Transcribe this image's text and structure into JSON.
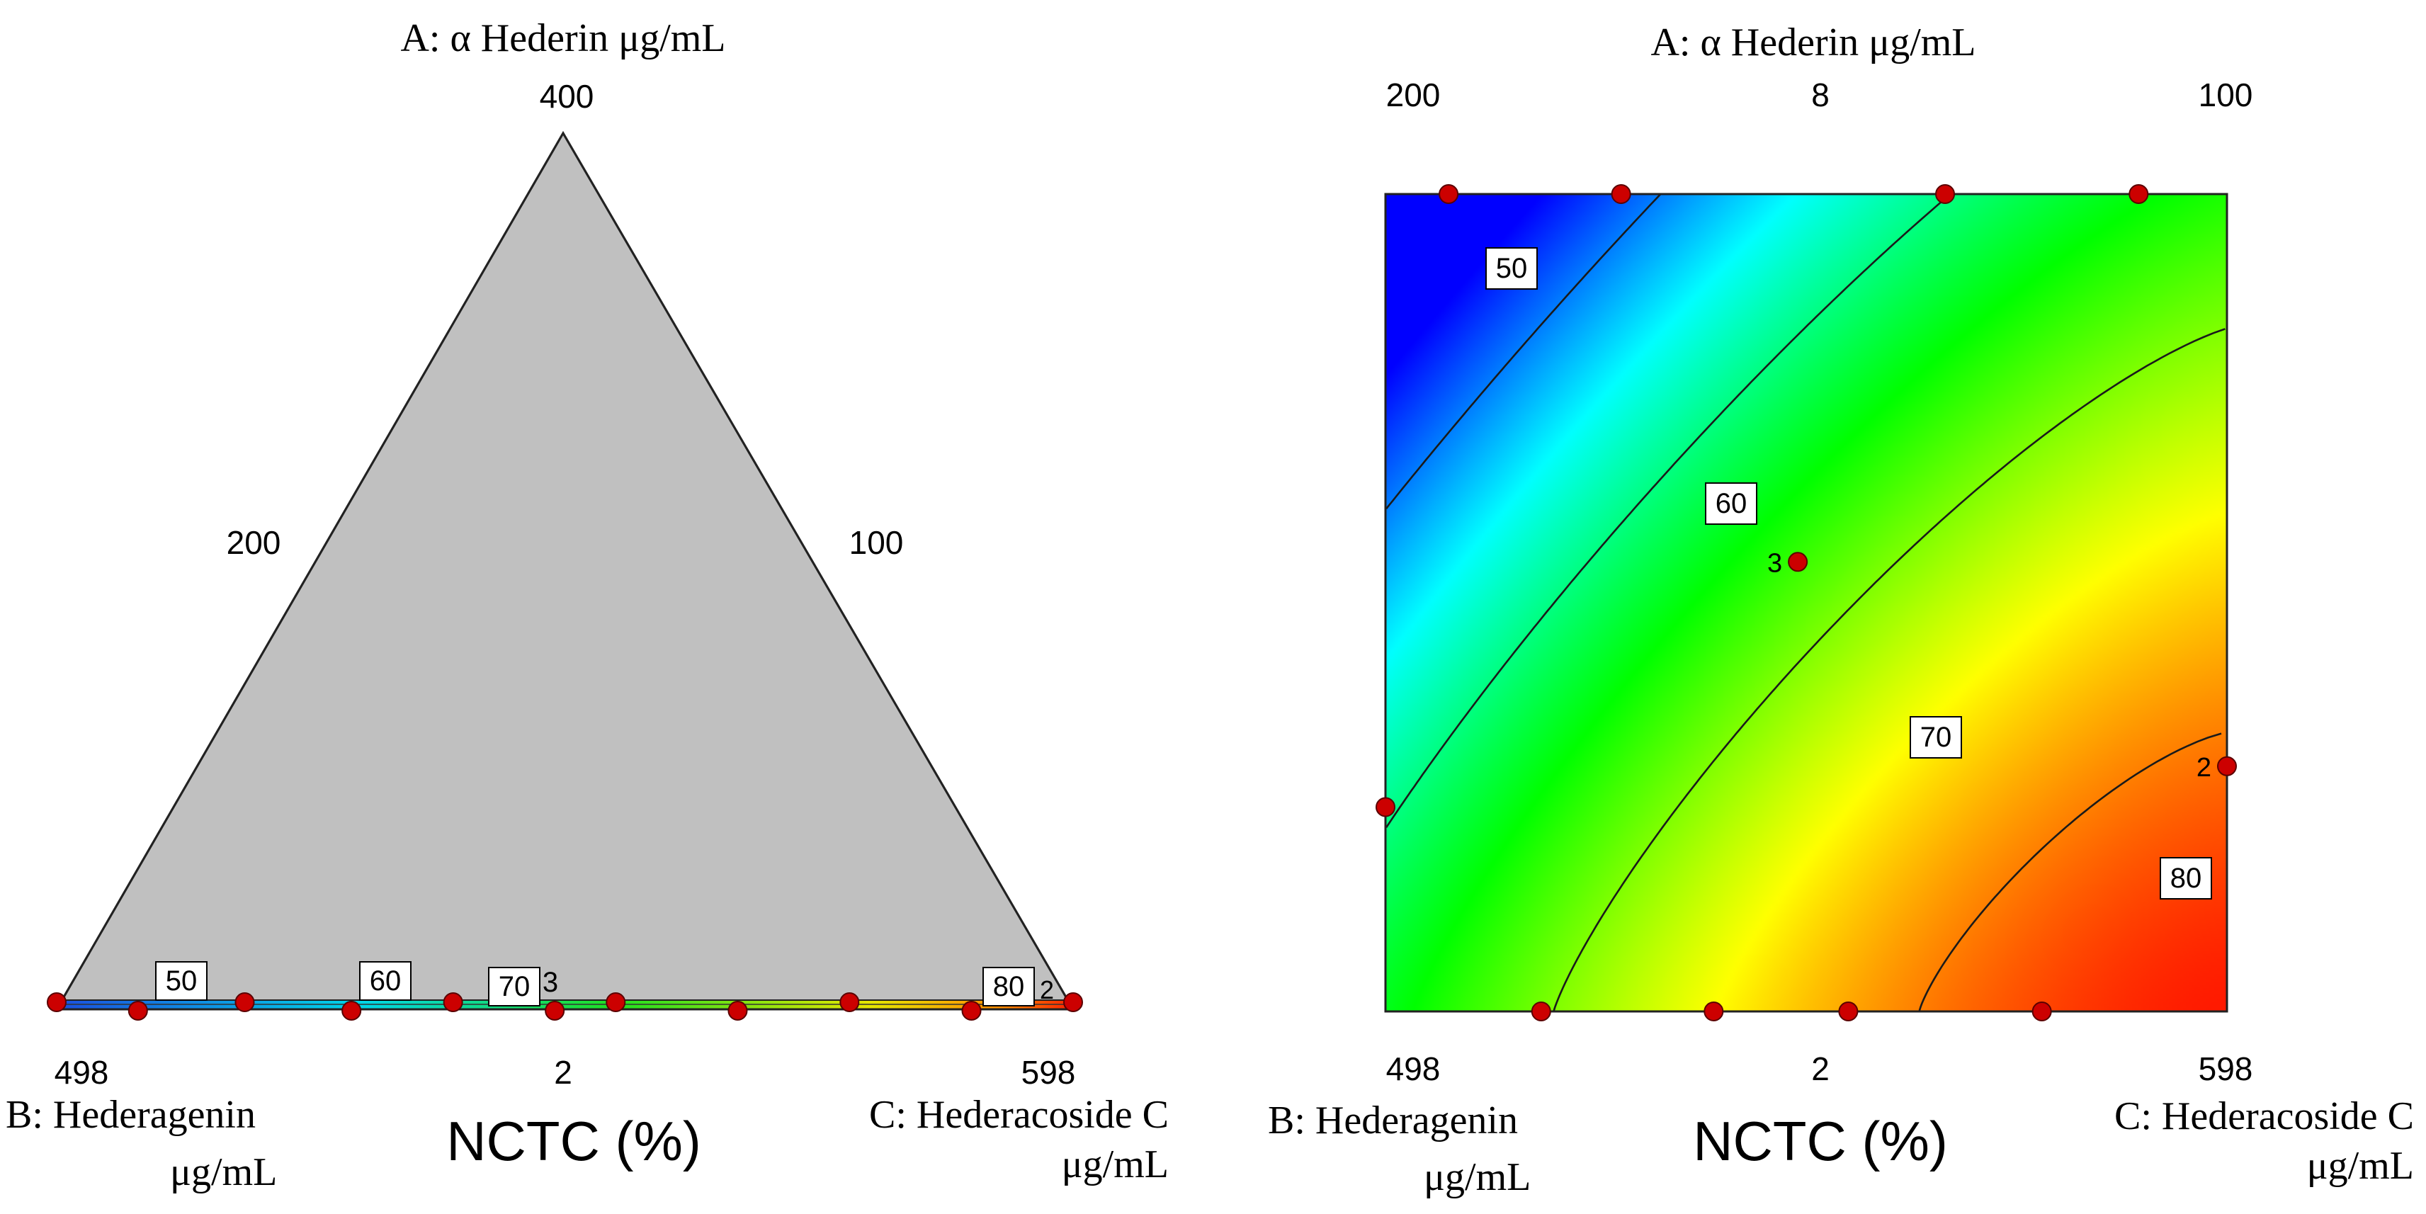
{
  "chart_data": [
    {
      "type": "ternary-contour",
      "title": "",
      "response": "NCTC (%)",
      "vertices": {
        "A": {
          "label": "A:   α Hederin μg/mL",
          "max": 400
        },
        "B": {
          "label_line1": "B: Hederagenin",
          "label_line2": "μg/mL",
          "max": 498
        },
        "C": {
          "label_line1": "C:  Hederacoside C",
          "label_line2": "μg/mL",
          "max": 598
        }
      },
      "tick_labels": {
        "apex": "400",
        "left_edge_mid": "200",
        "right_edge_mid": "100",
        "bottom_left": "498",
        "bottom_mid": "2",
        "bottom_right": "598"
      },
      "contour_levels": [
        50,
        60,
        70,
        80
      ],
      "contour_labels": [
        "50",
        "60",
        "70",
        "80"
      ],
      "point_annotations": [
        "3",
        "2"
      ],
      "design_points": [
        {
          "a": 0.0,
          "c": 0.0
        },
        {
          "a": 0.0,
          "c": 0.08
        },
        {
          "a": 0.0,
          "c": 0.185
        },
        {
          "a": 0.0,
          "c": 0.29
        },
        {
          "a": 0.0,
          "c": 0.39
        },
        {
          "a": 0.0,
          "c": 0.49
        },
        {
          "a": 0.0,
          "c": 0.55
        },
        {
          "a": 0.0,
          "c": 0.67
        },
        {
          "a": 0.0,
          "c": 0.78
        },
        {
          "a": 0.0,
          "c": 0.9
        },
        {
          "a": 0.0,
          "c": 1.0
        }
      ],
      "grid": false
    },
    {
      "type": "contour",
      "title": "",
      "response": "NCTC (%)",
      "top_axis": {
        "label": "A:   α Hederin μg/mL",
        "ticks": [
          "200",
          "8",
          "100"
        ]
      },
      "bottom_axis": {
        "ticks": [
          "498",
          "2",
          "598"
        ]
      },
      "bottom_left_label": {
        "line1": "B: Hederagenin",
        "line2": "μg/mL"
      },
      "bottom_right_label": {
        "line1": "C:  Hederacoside C",
        "line2": "μg/mL"
      },
      "color_scale": {
        "min": 45,
        "max": 85,
        "colors": [
          "#0000ff",
          "#00ffff",
          "#00ff00",
          "#ffff00",
          "#ff0000"
        ]
      },
      "contour_levels": [
        50,
        60,
        70,
        80
      ],
      "contour_labels": [
        "50",
        "60",
        "70",
        "80"
      ],
      "point_annotations": [
        "3",
        "2"
      ],
      "design_points": [
        {
          "u": 0.075,
          "v": 1.0
        },
        {
          "u": 0.28,
          "v": 1.0
        },
        {
          "u": 0.665,
          "v": 1.0
        },
        {
          "u": 0.895,
          "v": 1.0
        },
        {
          "u": 0.49,
          "v": 0.55,
          "label": "3"
        },
        {
          "u": 0.0,
          "v": 0.25
        },
        {
          "u": 1.0,
          "v": 0.3,
          "label": "2"
        },
        {
          "u": 0.185,
          "v": 0.0
        },
        {
          "u": 0.39,
          "v": 0.0
        },
        {
          "u": 0.55,
          "v": 0.0
        },
        {
          "u": 0.78,
          "v": 0.0
        }
      ],
      "grid": false
    }
  ]
}
